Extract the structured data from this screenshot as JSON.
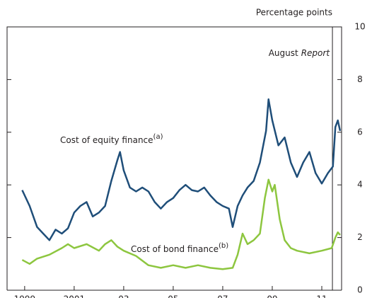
{
  "chart_data": {
    "type": "line",
    "y_label": "Percentage points",
    "ylim": [
      0,
      10
    ],
    "yticks": [
      0,
      2,
      4,
      6,
      8,
      10
    ],
    "xlim": [
      1998.29,
      2011.8
    ],
    "xticks": [
      1999,
      2001,
      {
        "value": 2003,
        "label": "03"
      },
      {
        "value": 2005,
        "label": "05"
      },
      {
        "value": 2007,
        "label": "07"
      },
      {
        "value": 2009,
        "label": "09"
      },
      {
        "value": 2011,
        "label": "11"
      }
    ],
    "event_line": {
      "x": 2011.43,
      "text": "August",
      "italic": "Report"
    },
    "series": [
      {
        "name": "Cost of equity finance",
        "sup": "(a)",
        "color": "#1f4e79",
        "x": [
          1998.9,
          1999.2,
          1999.5,
          1999.75,
          2000.0,
          2000.25,
          2000.5,
          2000.75,
          2001.0,
          2001.25,
          2001.5,
          2001.75,
          2002.0,
          2002.25,
          2002.5,
          2002.75,
          2002.85,
          2003.0,
          2003.25,
          2003.5,
          2003.75,
          2004.0,
          2004.25,
          2004.5,
          2004.75,
          2005.0,
          2005.25,
          2005.5,
          2005.75,
          2006.0,
          2006.25,
          2006.5,
          2006.75,
          2007.0,
          2007.25,
          2007.4,
          2007.6,
          2007.8,
          2008.0,
          2008.25,
          2008.5,
          2008.75,
          2008.85,
          2009.0,
          2009.25,
          2009.5,
          2009.75,
          2010.0,
          2010.25,
          2010.5,
          2010.75,
          2011.0,
          2011.25,
          2011.45,
          2011.55,
          2011.65,
          2011.74
        ],
        "values": [
          3.8,
          3.2,
          2.4,
          2.15,
          1.9,
          2.3,
          2.15,
          2.35,
          2.95,
          3.2,
          3.35,
          2.8,
          2.95,
          3.2,
          4.15,
          4.95,
          5.25,
          4.55,
          3.9,
          3.75,
          3.9,
          3.75,
          3.35,
          3.1,
          3.35,
          3.5,
          3.8,
          4.0,
          3.8,
          3.75,
          3.9,
          3.6,
          3.35,
          3.2,
          3.1,
          2.4,
          3.2,
          3.6,
          3.9,
          4.15,
          4.85,
          6.05,
          7.25,
          6.45,
          5.5,
          5.8,
          4.85,
          4.3,
          4.85,
          5.25,
          4.45,
          4.05,
          4.45,
          4.7,
          6.2,
          6.45,
          6.05
        ]
      },
      {
        "name": "Cost of bond finance",
        "sup": "(b)",
        "color": "#8dc63f",
        "x": [
          1998.9,
          1999.2,
          1999.5,
          2000.0,
          2000.5,
          2000.75,
          2001.0,
          2001.5,
          2002.0,
          2002.25,
          2002.5,
          2002.75,
          2003.0,
          2003.5,
          2004.0,
          2004.5,
          2005.0,
          2005.5,
          2006.0,
          2006.5,
          2007.0,
          2007.4,
          2007.6,
          2007.8,
          2008.0,
          2008.25,
          2008.5,
          2008.7,
          2008.85,
          2009.0,
          2009.1,
          2009.3,
          2009.5,
          2009.75,
          2010.0,
          2010.5,
          2011.0,
          2011.4,
          2011.55,
          2011.65,
          2011.74
        ],
        "values": [
          1.15,
          1.0,
          1.2,
          1.35,
          1.6,
          1.75,
          1.6,
          1.75,
          1.5,
          1.75,
          1.9,
          1.65,
          1.5,
          1.3,
          0.95,
          0.85,
          0.95,
          0.85,
          0.95,
          0.85,
          0.8,
          0.85,
          1.35,
          2.15,
          1.75,
          1.9,
          2.15,
          3.5,
          4.2,
          3.75,
          4.0,
          2.7,
          1.9,
          1.6,
          1.5,
          1.4,
          1.5,
          1.6,
          2.0,
          2.2,
          2.1
        ]
      }
    ]
  }
}
